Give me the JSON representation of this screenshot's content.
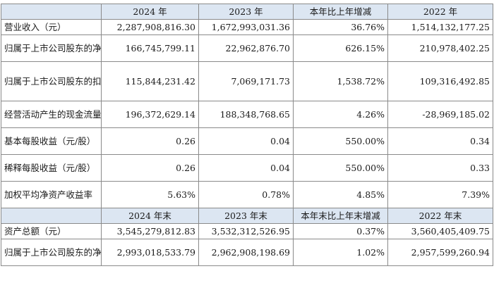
{
  "header": [
    "",
    "2024 年",
    "2023 年",
    "本年比上年增减",
    "2022 年"
  ],
  "rows": [
    {
      "label": "营业收入（元）",
      "v2024": "2,287,908,816.30",
      "v2023": "1,672,993,031.36",
      "change": "36.76%",
      "v2022": "1,514,132,177.25"
    },
    {
      "label": "归属于上市公司股东的净利润（元）",
      "v2024": "166,745,799.11",
      "v2023": "22,962,876.70",
      "change": "626.15%",
      "v2022": "210,978,402.25"
    },
    {
      "label": "归属于上市公司股东的扣除非经常性损益的净利润（元）",
      "v2024": "115,844,231.42",
      "v2023": "7,069,171.73",
      "change": "1,538.72%",
      "v2022": "109,316,492.85"
    },
    {
      "label": "经营活动产生的现金流量净额（元）",
      "v2024": "196,372,629.14",
      "v2023": "188,348,768.65",
      "change": "4.26%",
      "v2022": "-28,969,185.02"
    },
    {
      "label": "基本每股收益（元/股）",
      "v2024": "0.26",
      "v2023": "0.04",
      "change": "550.00%",
      "v2022": "0.34"
    },
    {
      "label": "稀释每股收益（元/股）",
      "v2024": "0.26",
      "v2023": "0.04",
      "change": "550.00%",
      "v2022": "0.33"
    },
    {
      "label": "加权平均净资产收益率",
      "v2024": "5.63%",
      "v2023": "0.78%",
      "change": "4.85%",
      "v2022": "7.39%"
    }
  ],
  "header2": [
    "",
    "2024 年末",
    "2023 年末",
    "本年末比上年末增减",
    "2022 年末"
  ],
  "rows2": [
    {
      "label": "资产总额（元）",
      "v2024": "3,545,279,812.83",
      "v2023": "3,532,312,526.95",
      "change": "0.37%",
      "v2022": "3,560,405,409.75"
    },
    {
      "label": "归属于上市公司股东的净资产（元）",
      "v2024": "2,993,018,533.79",
      "v2023": "2,962,908,198.69",
      "change": "1.02%",
      "v2022": "2,957,599,260.94"
    }
  ]
}
